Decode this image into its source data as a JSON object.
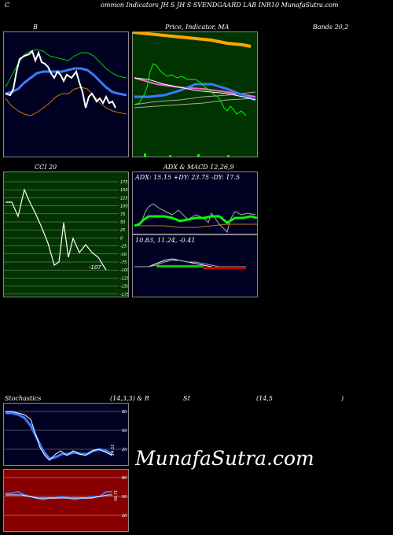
{
  "header": {
    "left": "C",
    "title": "ommon  Indicators JH                           S JH                          S SVENDGAARD LAB INR10  MunafaSutra.com"
  },
  "row1": {
    "bb_label": "B",
    "price_label": "Price,  Indicator, MA",
    "bands_label": "Bands 20,2"
  },
  "row2": {
    "cci_label": "CCI 20",
    "adx_label": "ADX  & MACD 12,26,9",
    "adx_values": "ADX: 15.15  +DY: 23.75  -DY: 17.5",
    "macd_values": "10.83,  11.24,  -0.41",
    "cci_value": "-107",
    "cci_ticks": [
      "175",
      "150",
      "125",
      "100",
      "75",
      "50",
      "25",
      "0",
      "-25",
      "-50",
      "-75",
      "-100",
      "-125",
      "-150",
      "-175"
    ]
  },
  "row3": {
    "stoch_label": "Stochastics",
    "stoch_params": "(14,3,3) & R",
    "rsi_label": "SI",
    "rsi_params": "(14,5",
    "rsi_close": ")",
    "stoch_ticks": [
      "80",
      "50",
      "20"
    ],
    "rsi_ticks": [
      "80",
      "50",
      "20"
    ],
    "stoch_value": "14.51",
    "rsi_value": "56.71"
  },
  "watermark": "MunafaSutra.com",
  "colors": {
    "bb_bg": "#000022",
    "price_bg": "#003300",
    "cci_bg": "#003300",
    "adx_bg": "#000022",
    "stoch_bg": "#000022",
    "rsi_bg": "#880000",
    "blue_line": "#3a7bff",
    "green_line": "#00ff00",
    "orange_line": "#ff9900"
  }
}
